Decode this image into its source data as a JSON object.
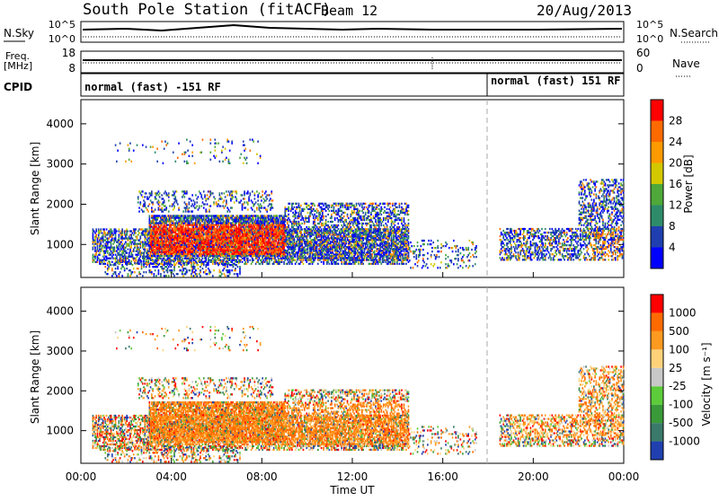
{
  "header": {
    "station": "South Pole Station (fitACF)",
    "beam": "Beam 12",
    "date": "20/Aug/2013"
  },
  "summary_panels": {
    "nsky_label": "N.Sky",
    "nsearch_label": "N.Search",
    "freq_label_line1": "Freq.",
    "freq_label_line2": "[MHz]",
    "nave_label": "Nave",
    "cpid_label": "CPID",
    "noise_left_ticks": [
      "10^5",
      "10^0"
    ],
    "noise_right_ticks": [
      "10^5",
      "10^0"
    ],
    "freq_left_ticks": [
      "18",
      "8"
    ],
    "freq_right_ticks": [
      "60",
      "0"
    ],
    "cpid_segments": [
      {
        "label": "normal (fast) -151 RF",
        "start_hour": 0
      },
      {
        "label": "normal (fast) 151 RF",
        "start_hour": 18
      }
    ]
  },
  "colorbars": {
    "power": {
      "label": "Power [dB]",
      "ticks": [
        "28",
        "24",
        "20",
        "16",
        "12",
        "8",
        "4"
      ],
      "colors": [
        "#0000ff",
        "#1f3fb0",
        "#2e8b6a",
        "#4ea83a",
        "#d4c800",
        "#ff9a00",
        "#ff6a00",
        "#ff0000"
      ]
    },
    "velocity": {
      "label": "Velocity [m s⁻¹]",
      "ticks": [
        "1000",
        "500",
        "100",
        "25",
        "-25",
        "-100",
        "-500",
        "-1000"
      ],
      "colors": [
        "#2040b0",
        "#3a7a6a",
        "#3a9a3a",
        "#5ccc3a",
        "#c8c8c8",
        "#ffd27a",
        "#ff9a20",
        "#ff6a00",
        "#ff0000"
      ]
    }
  },
  "chart_data": [
    {
      "type": "heatmap",
      "name": "power",
      "ylabel": "Slant Range [km]",
      "yticks": [
        "1000",
        "2000",
        "3000",
        "4000"
      ],
      "ylim": [
        180,
        4600
      ],
      "xlim": [
        0,
        24
      ],
      "cbar_label": "Power [dB]",
      "cbar_ticks": [
        4,
        8,
        12,
        16,
        20,
        24,
        28
      ]
    },
    {
      "type": "heatmap",
      "name": "velocity",
      "ylabel": "Slant Range [km]",
      "yticks": [
        "1000",
        "2000",
        "3000",
        "4000"
      ],
      "ylim": [
        180,
        4600
      ],
      "xlim": [
        0,
        24
      ],
      "xlabel": "Time UT",
      "xticks": [
        "00:00",
        "04:00",
        "08:00",
        "12:00",
        "16:00",
        "20:00",
        "00:00"
      ],
      "cbar_label": "Velocity [m s⁻¹]",
      "cbar_ticks": [
        1000,
        500,
        100,
        25,
        -25,
        -100,
        -500,
        -1000
      ]
    }
  ]
}
